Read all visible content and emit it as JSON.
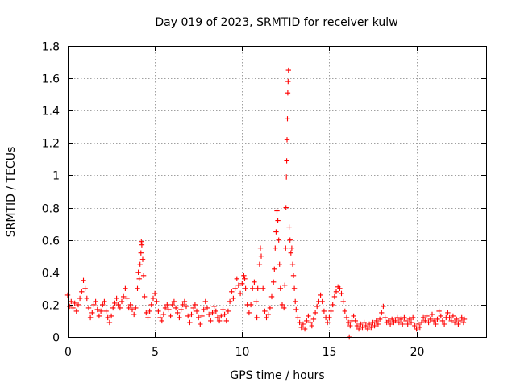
{
  "chart_data": {
    "type": "scatter",
    "title": "Day 019 of 2023, SRMTID for receiver kulw",
    "xlabel": "GPS time / hours",
    "ylabel": "SRMTID / TECUs",
    "xlim": [
      0,
      24
    ],
    "ylim": [
      0,
      1.8
    ],
    "x_ticks": [
      0,
      5,
      10,
      15,
      20
    ],
    "x_tick_labels": [
      "0",
      "5",
      "10",
      "15",
      "20"
    ],
    "y_ticks": [
      0,
      0.2,
      0.4,
      0.6,
      0.8,
      1.0,
      1.2,
      1.4,
      1.6,
      1.8
    ],
    "y_tick_labels": [
      "0",
      "0.2",
      "0.4",
      "0.6",
      "0.8",
      "1",
      "1.2",
      "1.4",
      "1.6",
      "1.8"
    ],
    "grid": true,
    "marker": "+",
    "marker_color": "#ff0000",
    "series": [
      {
        "name": "SRMTID",
        "points": [
          [
            0.0,
            0.26
          ],
          [
            0.1,
            0.19
          ],
          [
            0.2,
            0.22
          ],
          [
            0.3,
            0.18
          ],
          [
            0.4,
            0.21
          ],
          [
            0.5,
            0.16
          ],
          [
            0.6,
            0.2
          ],
          [
            0.7,
            0.24
          ],
          [
            0.8,
            0.28
          ],
          [
            0.9,
            0.35
          ],
          [
            1.0,
            0.3
          ],
          [
            1.1,
            0.24
          ],
          [
            1.2,
            0.18
          ],
          [
            1.3,
            0.12
          ],
          [
            1.4,
            0.15
          ],
          [
            1.5,
            0.2
          ],
          [
            1.6,
            0.22
          ],
          [
            1.7,
            0.17
          ],
          [
            1.8,
            0.13
          ],
          [
            1.9,
            0.16
          ],
          [
            2.0,
            0.2
          ],
          [
            2.1,
            0.22
          ],
          [
            2.2,
            0.16
          ],
          [
            2.3,
            0.12
          ],
          [
            2.4,
            0.09
          ],
          [
            2.5,
            0.13
          ],
          [
            2.6,
            0.18
          ],
          [
            2.7,
            0.21
          ],
          [
            2.8,
            0.24
          ],
          [
            2.9,
            0.2
          ],
          [
            3.0,
            0.18
          ],
          [
            3.1,
            0.22
          ],
          [
            3.2,
            0.25
          ],
          [
            3.3,
            0.3
          ],
          [
            3.4,
            0.24
          ],
          [
            3.5,
            0.18
          ],
          [
            3.6,
            0.2
          ],
          [
            3.7,
            0.17
          ],
          [
            3.8,
            0.14
          ],
          [
            3.9,
            0.18
          ],
          [
            4.0,
            0.3
          ],
          [
            4.05,
            0.4
          ],
          [
            4.1,
            0.36
          ],
          [
            4.15,
            0.45
          ],
          [
            4.2,
            0.52
          ],
          [
            4.22,
            0.59
          ],
          [
            4.25,
            0.57
          ],
          [
            4.3,
            0.48
          ],
          [
            4.35,
            0.38
          ],
          [
            4.4,
            0.25
          ],
          [
            4.5,
            0.15
          ],
          [
            4.6,
            0.12
          ],
          [
            4.7,
            0.16
          ],
          [
            4.8,
            0.2
          ],
          [
            4.9,
            0.24
          ],
          [
            5.0,
            0.27
          ],
          [
            5.1,
            0.22
          ],
          [
            5.2,
            0.16
          ],
          [
            5.3,
            0.12
          ],
          [
            5.4,
            0.1
          ],
          [
            5.5,
            0.14
          ],
          [
            5.6,
            0.18
          ],
          [
            5.7,
            0.2
          ],
          [
            5.8,
            0.17
          ],
          [
            5.9,
            0.13
          ],
          [
            6.0,
            0.2
          ],
          [
            6.1,
            0.22
          ],
          [
            6.2,
            0.18
          ],
          [
            6.3,
            0.15
          ],
          [
            6.4,
            0.12
          ],
          [
            6.5,
            0.17
          ],
          [
            6.6,
            0.2
          ],
          [
            6.7,
            0.22
          ],
          [
            6.8,
            0.19
          ],
          [
            6.9,
            0.13
          ],
          [
            7.0,
            0.09
          ],
          [
            7.1,
            0.14
          ],
          [
            7.2,
            0.18
          ],
          [
            7.3,
            0.2
          ],
          [
            7.4,
            0.16
          ],
          [
            7.5,
            0.12
          ],
          [
            7.6,
            0.08
          ],
          [
            7.7,
            0.13
          ],
          [
            7.8,
            0.17
          ],
          [
            7.9,
            0.22
          ],
          [
            8.0,
            0.18
          ],
          [
            8.1,
            0.14
          ],
          [
            8.2,
            0.1
          ],
          [
            8.3,
            0.15
          ],
          [
            8.4,
            0.19
          ],
          [
            8.5,
            0.16
          ],
          [
            8.6,
            0.12
          ],
          [
            8.7,
            0.1
          ],
          [
            8.8,
            0.13
          ],
          [
            8.9,
            0.17
          ],
          [
            9.0,
            0.14
          ],
          [
            9.1,
            0.1
          ],
          [
            9.2,
            0.16
          ],
          [
            9.3,
            0.22
          ],
          [
            9.4,
            0.28
          ],
          [
            9.5,
            0.24
          ],
          [
            9.6,
            0.3
          ],
          [
            9.7,
            0.36
          ],
          [
            9.8,
            0.32
          ],
          [
            9.9,
            0.27
          ],
          [
            10.0,
            0.33
          ],
          [
            10.1,
            0.38
          ],
          [
            10.15,
            0.36
          ],
          [
            10.2,
            0.3
          ],
          [
            10.3,
            0.2
          ],
          [
            10.4,
            0.15
          ],
          [
            10.5,
            0.2
          ],
          [
            10.6,
            0.3
          ],
          [
            10.7,
            0.34
          ],
          [
            10.8,
            0.22
          ],
          [
            10.85,
            0.12
          ],
          [
            10.9,
            0.3
          ],
          [
            11.0,
            0.45
          ],
          [
            11.05,
            0.55
          ],
          [
            11.1,
            0.5
          ],
          [
            11.2,
            0.3
          ],
          [
            11.3,
            0.16
          ],
          [
            11.4,
            0.12
          ],
          [
            11.5,
            0.14
          ],
          [
            11.6,
            0.18
          ],
          [
            11.7,
            0.25
          ],
          [
            11.8,
            0.34
          ],
          [
            11.85,
            0.42
          ],
          [
            11.9,
            0.55
          ],
          [
            11.95,
            0.65
          ],
          [
            12.0,
            0.78
          ],
          [
            12.05,
            0.72
          ],
          [
            12.1,
            0.6
          ],
          [
            12.15,
            0.45
          ],
          [
            12.2,
            0.3
          ],
          [
            12.3,
            0.2
          ],
          [
            12.4,
            0.18
          ],
          [
            12.45,
            0.32
          ],
          [
            12.5,
            0.55
          ],
          [
            12.52,
            0.8
          ],
          [
            12.54,
            0.99
          ],
          [
            12.56,
            1.09
          ],
          [
            12.58,
            1.22
          ],
          [
            12.6,
            1.35
          ],
          [
            12.62,
            1.51
          ],
          [
            12.64,
            1.58
          ],
          [
            12.66,
            1.65
          ],
          [
            12.7,
            0.68
          ],
          [
            12.75,
            0.6
          ],
          [
            12.8,
            0.52
          ],
          [
            12.85,
            0.55
          ],
          [
            12.9,
            0.45
          ],
          [
            12.95,
            0.38
          ],
          [
            13.0,
            0.3
          ],
          [
            13.05,
            0.22
          ],
          [
            13.1,
            0.17
          ],
          [
            13.2,
            0.12
          ],
          [
            13.3,
            0.09
          ],
          [
            13.4,
            0.06
          ],
          [
            13.5,
            0.08
          ],
          [
            13.6,
            0.05
          ],
          [
            13.7,
            0.1
          ],
          [
            13.8,
            0.13
          ],
          [
            13.9,
            0.09
          ],
          [
            14.0,
            0.07
          ],
          [
            14.1,
            0.11
          ],
          [
            14.2,
            0.15
          ],
          [
            14.3,
            0.19
          ],
          [
            14.4,
            0.22
          ],
          [
            14.5,
            0.26
          ],
          [
            14.6,
            0.22
          ],
          [
            14.7,
            0.16
          ],
          [
            14.8,
            0.12
          ],
          [
            14.9,
            0.09
          ],
          [
            15.0,
            0.12
          ],
          [
            15.1,
            0.16
          ],
          [
            15.2,
            0.2
          ],
          [
            15.3,
            0.25
          ],
          [
            15.4,
            0.28
          ],
          [
            15.5,
            0.31
          ],
          [
            15.6,
            0.3
          ],
          [
            15.7,
            0.27
          ],
          [
            15.8,
            0.22
          ],
          [
            15.9,
            0.16
          ],
          [
            16.0,
            0.12
          ],
          [
            16.1,
            0.09
          ],
          [
            16.15,
            0.0
          ],
          [
            16.2,
            0.07
          ],
          [
            16.3,
            0.1
          ],
          [
            16.4,
            0.13
          ],
          [
            16.5,
            0.1
          ],
          [
            16.6,
            0.07
          ],
          [
            16.7,
            0.05
          ],
          [
            16.8,
            0.08
          ],
          [
            16.9,
            0.06
          ],
          [
            17.0,
            0.09
          ],
          [
            17.1,
            0.07
          ],
          [
            17.2,
            0.05
          ],
          [
            17.3,
            0.08
          ],
          [
            17.4,
            0.06
          ],
          [
            17.5,
            0.09
          ],
          [
            17.6,
            0.07
          ],
          [
            17.7,
            0.1
          ],
          [
            17.8,
            0.08
          ],
          [
            17.9,
            0.11
          ],
          [
            18.0,
            0.15
          ],
          [
            18.1,
            0.19
          ],
          [
            18.2,
            0.12
          ],
          [
            18.3,
            0.09
          ],
          [
            18.4,
            0.1
          ],
          [
            18.5,
            0.08
          ],
          [
            18.6,
            0.11
          ],
          [
            18.7,
            0.09
          ],
          [
            18.8,
            0.1
          ],
          [
            18.9,
            0.12
          ],
          [
            19.0,
            0.09
          ],
          [
            19.1,
            0.11
          ],
          [
            19.2,
            0.08
          ],
          [
            19.3,
            0.12
          ],
          [
            19.4,
            0.1
          ],
          [
            19.5,
            0.08
          ],
          [
            19.6,
            0.11
          ],
          [
            19.7,
            0.09
          ],
          [
            19.8,
            0.12
          ],
          [
            19.9,
            0.07
          ],
          [
            20.0,
            0.05
          ],
          [
            20.1,
            0.08
          ],
          [
            20.2,
            0.06
          ],
          [
            20.3,
            0.09
          ],
          [
            20.4,
            0.12
          ],
          [
            20.5,
            0.1
          ],
          [
            20.6,
            0.13
          ],
          [
            20.7,
            0.09
          ],
          [
            20.8,
            0.11
          ],
          [
            20.9,
            0.14
          ],
          [
            21.0,
            0.1
          ],
          [
            21.1,
            0.08
          ],
          [
            21.2,
            0.11
          ],
          [
            21.3,
            0.16
          ],
          [
            21.4,
            0.13
          ],
          [
            21.5,
            0.1
          ],
          [
            21.6,
            0.08
          ],
          [
            21.7,
            0.12
          ],
          [
            21.8,
            0.15
          ],
          [
            21.9,
            0.12
          ],
          [
            22.0,
            0.1
          ],
          [
            22.1,
            0.13
          ],
          [
            22.2,
            0.09
          ],
          [
            22.3,
            0.11
          ],
          [
            22.4,
            0.08
          ],
          [
            22.5,
            0.1
          ],
          [
            22.6,
            0.12
          ],
          [
            22.7,
            0.09
          ],
          [
            22.75,
            0.11
          ]
        ]
      }
    ]
  }
}
